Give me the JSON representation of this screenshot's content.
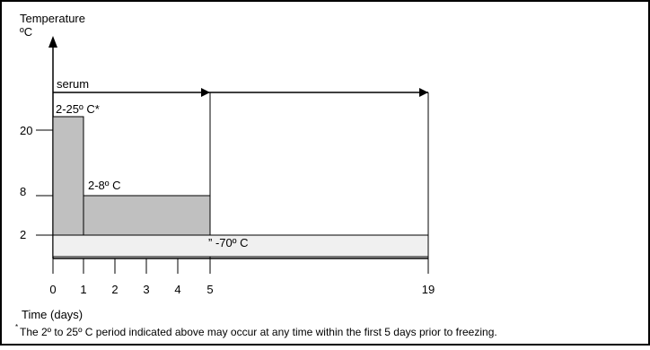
{
  "axis": {
    "y_label_line1": "Temperature",
    "y_label_line2": "ºC",
    "x_label": "Time (days)",
    "y_ticks": [
      "20",
      "8",
      "2"
    ],
    "x_ticks": [
      "0",
      "1",
      "2",
      "3",
      "4",
      "5",
      "19"
    ]
  },
  "labels": {
    "serum": "serum",
    "range_room": "2-25º C*",
    "range_fridge": "2-8º C",
    "range_frozen": "” -70º C"
  },
  "footnote": {
    "marker": "*",
    "text": "The 2º to 25º C period indicated above may occur at any time within the first 5 days prior to freezing."
  },
  "colors": {
    "gray_fill": "#c0c0c0",
    "light_fill": "#f0f0f0",
    "stroke": "#000000"
  }
}
